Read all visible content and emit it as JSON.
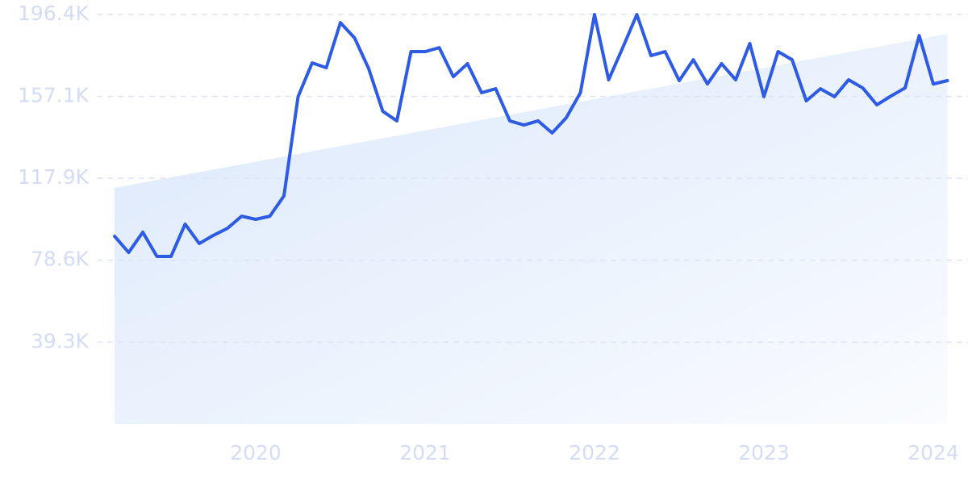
{
  "chart_data": {
    "type": "line",
    "categories": [
      null,
      null,
      null,
      null,
      null,
      null,
      null,
      null,
      null,
      null,
      "2020",
      null,
      null,
      null,
      null,
      null,
      null,
      null,
      null,
      null,
      null,
      null,
      "2021",
      null,
      null,
      null,
      null,
      null,
      null,
      null,
      null,
      null,
      null,
      null,
      "2022",
      null,
      null,
      null,
      null,
      null,
      null,
      null,
      null,
      null,
      null,
      null,
      "2023",
      null,
      null,
      null,
      null,
      null,
      null,
      null,
      null,
      null,
      null,
      null,
      "2024",
      null
    ],
    "series": [
      {
        "color": "#2d5be3",
        "values": [
          90100,
          82300,
          92000,
          80400,
          80400,
          95900,
          86600,
          90500,
          93900,
          99700,
          98200,
          99700,
          109400,
          157000,
          173200,
          170900,
          192500,
          185200,
          170500,
          150000,
          145400,
          178600,
          178600,
          180500,
          166600,
          172800,
          158900,
          160800,
          145400,
          143400,
          145400,
          139600,
          146900,
          158900,
          196400,
          165100,
          180500,
          196400,
          176700,
          178600,
          164700,
          174700,
          163100,
          172800,
          165100,
          182500,
          157000,
          178600,
          174700,
          155000,
          160800,
          157000,
          165100,
          161200,
          153100,
          157300,
          161200,
          186300,
          163100,
          164700
        ]
      }
    ],
    "trendline": {
      "color": "#dbe8fb",
      "values": [
        113300,
        187100
      ]
    },
    "ylim": [
      0,
      196400
    ],
    "yticks": [
      {
        "value": 39300,
        "label": "39.3K"
      },
      {
        "value": 78600,
        "label": "78.6K"
      },
      {
        "value": 117900,
        "label": "117.9K"
      },
      {
        "value": 157100,
        "label": "157.1K"
      },
      {
        "value": 196400,
        "label": "196.4K"
      }
    ],
    "grid": true
  }
}
